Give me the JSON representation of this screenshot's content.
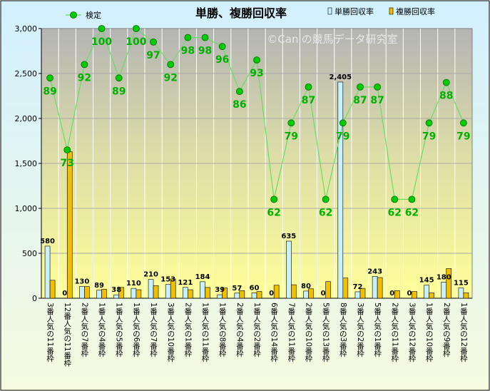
{
  "chart_data": {
    "type": "bar",
    "title": "単勝、複勝回収率",
    "watermark": "©Caniの競馬データ研究室",
    "categories": [
      "3番人気の11番枠",
      "12番人気の11番枠",
      "2番人気の7番枠",
      "1番人気の4番枠",
      "1番人気の5番枠",
      "1番人気の6番枠",
      "1番人気の7番枠",
      "3番人気の10番枠",
      "2番人気の1番枠",
      "1番人気の11番枠",
      "1番人気の8番枠",
      "2番人気の4番枠",
      "1番人気の2番枠",
      "6番人気の14番枠",
      "7番人気の11番枠",
      "2番人気の10番枠",
      "5番人気の13番枠",
      "8番人気の3番枠",
      "3番人気の2番枠",
      "5番人気の1番枠",
      "2番人気の11番枠",
      "3番人気の12番枠",
      "1番人気の10番枠",
      "2番人気の9番枠",
      "1番人気の12番枠"
    ],
    "series": [
      {
        "name": "単勝回収率",
        "color": "#c8f0ff",
        "values": [
          580,
          0,
          130,
          89,
          38,
          110,
          210,
          153,
          121,
          184,
          39,
          57,
          60,
          0,
          635,
          80,
          0,
          2405,
          72,
          243,
          0,
          0,
          145,
          180,
          115
        ]
      },
      {
        "name": "複勝回収率",
        "color": "#f0c000",
        "values": [
          200,
          1630,
          130,
          100,
          120,
          95,
          140,
          215,
          95,
          120,
          115,
          85,
          75,
          145,
          150,
          105,
          185,
          225,
          110,
          230,
          85,
          75,
          60,
          330,
          60
        ]
      },
      {
        "name": "検定",
        "color": "#00cc00",
        "line_color": "#66dd66",
        "axis": "right",
        "values": [
          89,
          73,
          92,
          100,
          89,
          100,
          97,
          92,
          98,
          98,
          96,
          86,
          93,
          62,
          79,
          87,
          62,
          79,
          87,
          87,
          62,
          62,
          79,
          88,
          79
        ]
      }
    ],
    "ylim": [
      0,
      3000
    ],
    "yticks": [
      0,
      500,
      1000,
      1500,
      2000,
      2500,
      3000
    ],
    "ytick_labels": [
      "0",
      "500",
      "1,000",
      "1,500",
      "2,000",
      "2,500",
      "3,000"
    ],
    "y2lim": [
      40,
      100
    ],
    "value_labels": [
      "580",
      "0",
      "130",
      "89",
      "38",
      "110",
      "210",
      "153",
      "121",
      "184",
      "39",
      "57",
      "60",
      "0",
      "635",
      "80",
      "0",
      "2,405",
      "72",
      "243",
      "0",
      "0",
      "145",
      "180",
      "115"
    ],
    "legend": {
      "position": "top"
    },
    "grid": true
  }
}
